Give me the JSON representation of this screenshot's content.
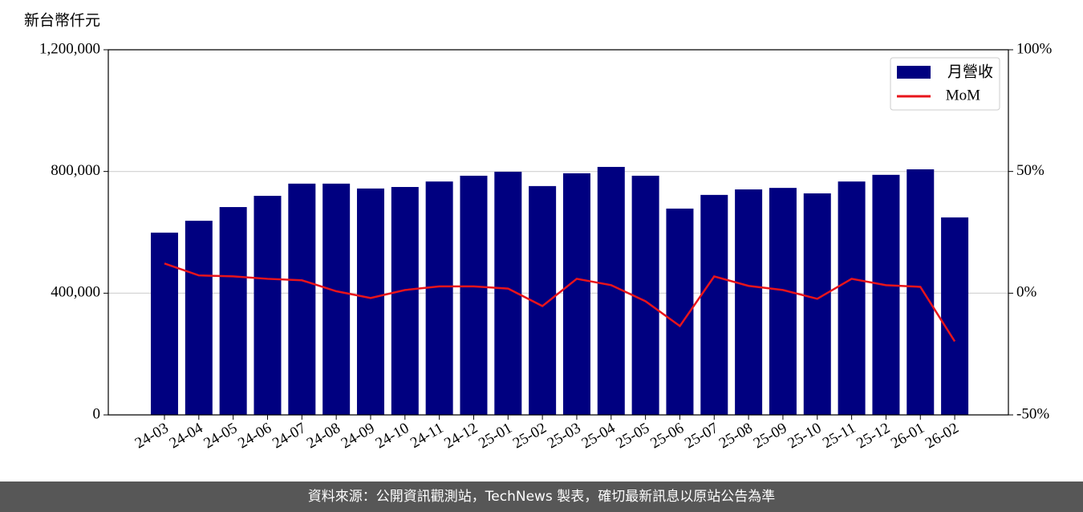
{
  "chart_data": {
    "type": "bar-line",
    "ylabel": "新台幣仟元",
    "categories": [
      "24-03",
      "24-04",
      "24-05",
      "24-06",
      "24-07",
      "24-08",
      "24-09",
      "24-10",
      "24-11",
      "24-12",
      "25-01",
      "25-02",
      "25-03",
      "25-04",
      "25-05",
      "25-06",
      "25-07",
      "25-08",
      "25-09",
      "25-10",
      "25-11",
      "25-12",
      "26-01",
      "26-02"
    ],
    "series": [
      {
        "name": "月營收",
        "color": "#000080",
        "values": [
          599000,
          638000,
          683000,
          720000,
          760000,
          760000,
          744000,
          749000,
          767000,
          786000,
          799000,
          752000,
          794000,
          815000,
          786000,
          678000,
          723000,
          741000,
          746000,
          728000,
          767000,
          789000,
          807000,
          649000
        ]
      },
      {
        "name": "MoM",
        "color": "#e8141b",
        "axis": "y2",
        "values": [
          12.2,
          7.3,
          6.9,
          5.9,
          5.3,
          0.8,
          -2.0,
          1.3,
          2.8,
          2.8,
          1.9,
          -5.3,
          5.9,
          3.3,
          -3.3,
          -13.5,
          6.9,
          3.0,
          1.3,
          -2.3,
          5.9,
          3.3,
          2.6,
          -19.8
        ]
      }
    ],
    "ylim": [
      0,
      1200000
    ],
    "yticks": [
      {
        "value": 0,
        "label": "0"
      },
      {
        "value": 400000,
        "label": "400,000"
      },
      {
        "value": 800000,
        "label": "800,000"
      },
      {
        "value": 1200000,
        "label": "1,200,000"
      }
    ],
    "y2lim": [
      -50,
      100
    ],
    "y2ticks": [
      {
        "value": -50,
        "label": "-50%"
      },
      {
        "value": 0,
        "label": "0%"
      },
      {
        "value": 50,
        "label": "50%"
      },
      {
        "value": 100,
        "label": "100%"
      }
    ],
    "grid": true,
    "legend": "upper right",
    "source": "資料來源：公開資訊觀測站，TechNews 製表，確切最新訊息以原站公告為準"
  }
}
